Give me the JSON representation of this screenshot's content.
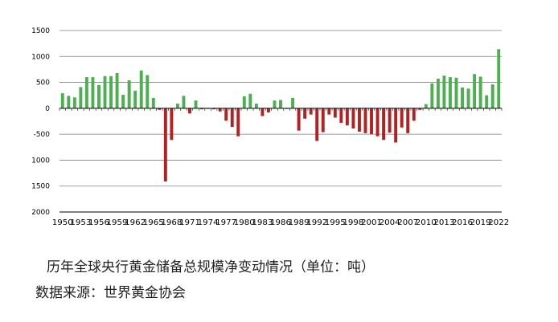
{
  "chart_data": {
    "type": "bar",
    "x": [
      1950,
      1951,
      1952,
      1953,
      1954,
      1955,
      1956,
      1957,
      1958,
      1959,
      1960,
      1961,
      1962,
      1963,
      1964,
      1965,
      1966,
      1967,
      1968,
      1969,
      1970,
      1971,
      1972,
      1973,
      1974,
      1975,
      1976,
      1977,
      1978,
      1979,
      1980,
      1981,
      1982,
      1983,
      1984,
      1985,
      1986,
      1987,
      1988,
      1989,
      1990,
      1991,
      1992,
      1993,
      1994,
      1995,
      1996,
      1997,
      1998,
      1999,
      2000,
      2001,
      2002,
      2003,
      2004,
      2005,
      2006,
      2007,
      2008,
      2009,
      2010,
      2011,
      2012,
      2013,
      2014,
      2015,
      2016,
      2017,
      2018,
      2019,
      2020,
      2021,
      2022
    ],
    "values": [
      290,
      240,
      210,
      410,
      600,
      600,
      450,
      620,
      620,
      680,
      260,
      540,
      340,
      730,
      640,
      200,
      -30,
      -1410,
      -610,
      90,
      240,
      -100,
      150,
      -20,
      -10,
      -20,
      -60,
      -240,
      -360,
      -540,
      230,
      280,
      90,
      -150,
      -80,
      150,
      160,
      -10,
      200,
      -430,
      -200,
      -120,
      -630,
      -460,
      -120,
      -180,
      -280,
      -330,
      -390,
      -450,
      -480,
      -500,
      -540,
      -610,
      -470,
      -660,
      -370,
      -480,
      -240,
      -30,
      80,
      480,
      570,
      630,
      600,
      590,
      400,
      380,
      660,
      610,
      250,
      460,
      1140
    ],
    "tick_labels": [
      "1950",
      "1953",
      "1956",
      "1959",
      "1962",
      "1965",
      "1968",
      "1971",
      "1974",
      "1977",
      "1980",
      "1983",
      "1986",
      "1989",
      "1992",
      "1995",
      "1998",
      "2001",
      "2004",
      "2007",
      "2010",
      "2013",
      "2016",
      "2019",
      "2022"
    ],
    "ylim": [
      -2000,
      1500
    ],
    "yticks": [
      1500,
      1000,
      500,
      0,
      -500,
      -1000,
      -1500,
      -2000
    ],
    "grid": true,
    "title": "",
    "xlabel": "",
    "ylabel": "",
    "colors": {
      "positive": "#4caf50",
      "negative": "#b22222",
      "grid": "#7f7f7f",
      "axis": "#000000"
    }
  },
  "captions": {
    "title": "历年全球央行黄金储备总规模净变动情况（单位：吨）",
    "source": "数据来源：世界黄金协会"
  }
}
